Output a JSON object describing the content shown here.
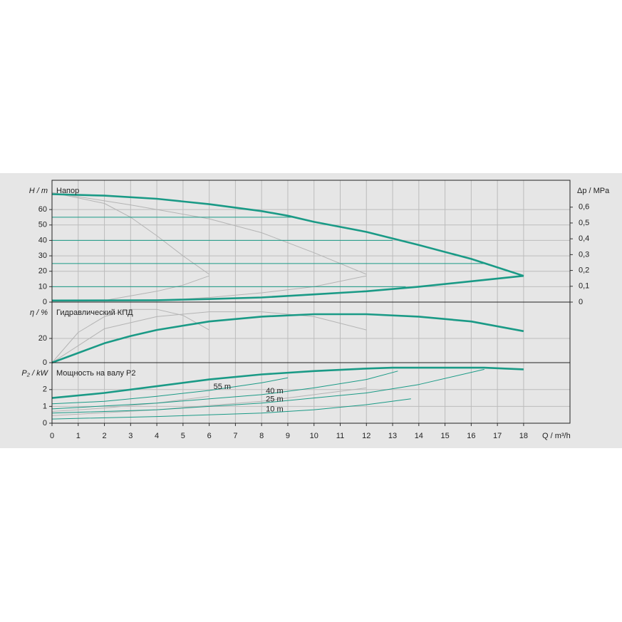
{
  "chart_data": [
    {
      "type": "line",
      "title": "Напор",
      "ylabel": "H / m",
      "y2label": "Δp / MPa",
      "xlim": [
        0,
        19.77
      ],
      "xticks": [
        0,
        1,
        2,
        3,
        4,
        5,
        6,
        7,
        8,
        9,
        10,
        11,
        12,
        13,
        14,
        15,
        16,
        17,
        18
      ],
      "ylim": [
        0,
        79
      ],
      "yticks": [
        0,
        10,
        20,
        30,
        40,
        50,
        60
      ],
      "y2lim": [
        0,
        0.77
      ],
      "y2ticks": [
        0,
        {
          "value": 0.1,
          "label": "0,1"
        },
        {
          "value": 0.2,
          "label": "0,2"
        },
        {
          "value": 0.3,
          "label": "0,3"
        },
        {
          "value": 0.4,
          "label": "0,4"
        },
        {
          "value": 0.5,
          "label": "0,5"
        },
        {
          "value": 0.6,
          "label": "0,6"
        }
      ],
      "grid": true,
      "series": [
        {
          "color": "#b4b4b4",
          "weight": "thin",
          "x": [
            0,
            2,
            3,
            4,
            5,
            6
          ],
          "values": [
            71,
            64,
            55,
            43,
            30,
            18
          ]
        },
        {
          "color": "#b4b4b4",
          "weight": "thin",
          "x": [
            2,
            3,
            4,
            5,
            6
          ],
          "values": [
            1,
            4,
            7,
            11,
            17
          ]
        },
        {
          "color": "#b4b4b4",
          "weight": "thin",
          "x": [
            0,
            3,
            6,
            8,
            10,
            12
          ],
          "values": [
            71,
            63,
            54,
            45,
            32,
            18
          ]
        },
        {
          "color": "#b4b4b4",
          "weight": "thin",
          "x": [
            4,
            6,
            8,
            10,
            12
          ],
          "values": [
            1,
            3,
            6,
            10,
            17
          ]
        },
        {
          "color": "#1a9a86",
          "weight": "thin",
          "x": [
            0,
            9.2
          ],
          "values": [
            55,
            55
          ]
        },
        {
          "color": "#1a9a86",
          "weight": "thin",
          "x": [
            0,
            13
          ],
          "values": [
            40,
            40
          ]
        },
        {
          "color": "#1a9a86",
          "weight": "thin",
          "x": [
            0,
            16.5
          ],
          "values": [
            25,
            25
          ]
        },
        {
          "color": "#1a9a86",
          "weight": "thin",
          "x": [
            0,
            13.5
          ],
          "values": [
            10,
            10
          ]
        },
        {
          "color": "#1a9a86",
          "weight": "bold",
          "x": [
            0,
            2,
            4,
            6,
            8,
            9,
            10,
            12,
            14,
            16,
            18
          ],
          "values": [
            70,
            69,
            67,
            63.5,
            59,
            56,
            52,
            45.5,
            37,
            28,
            17
          ]
        },
        {
          "color": "#1a9a86",
          "weight": "bold",
          "x": [
            0,
            4,
            6,
            8,
            10,
            12,
            14,
            16,
            18
          ],
          "values": [
            1,
            1.2,
            2,
            3,
            5,
            7,
            10,
            13.5,
            17
          ]
        }
      ]
    },
    {
      "type": "line",
      "title": "Гидравлический КПД",
      "ylabel": "η / %",
      "xlim": [
        0,
        19.77
      ],
      "xticks": [
        0,
        1,
        2,
        3,
        4,
        5,
        6,
        7,
        8,
        9,
        10,
        11,
        12,
        13,
        14,
        15,
        16,
        17,
        18
      ],
      "ylim": [
        0,
        50
      ],
      "yticks": [
        0,
        20
      ],
      "grid": true,
      "series": [
        {
          "color": "#b4b4b4",
          "weight": "thin",
          "x": [
            0,
            1,
            2,
            3,
            4,
            5,
            6
          ],
          "values": [
            0,
            25,
            38,
            44,
            44,
            39,
            27
          ]
        },
        {
          "color": "#b4b4b4",
          "weight": "thin",
          "x": [
            0,
            2,
            4,
            6,
            8,
            10,
            12
          ],
          "values": [
            0,
            28,
            38,
            42,
            42,
            38,
            27
          ]
        },
        {
          "color": "#1a9a86",
          "weight": "bold",
          "x": [
            0,
            1,
            2,
            3,
            4,
            6,
            8,
            10,
            12,
            14,
            16,
            18
          ],
          "values": [
            0,
            8,
            16,
            22,
            27,
            34,
            38,
            40,
            40,
            38,
            34,
            26
          ]
        }
      ]
    },
    {
      "type": "line",
      "title": "Мощность на валу P2",
      "ylabel": "P₂ / kW",
      "xlabel": "Q / m³/h",
      "xlim": [
        0,
        19.77
      ],
      "xticks": [
        0,
        1,
        2,
        3,
        4,
        5,
        6,
        7,
        8,
        9,
        10,
        11,
        12,
        13,
        14,
        15,
        16,
        17,
        18
      ],
      "ylim": [
        0,
        3.6
      ],
      "yticks": [
        0,
        1,
        2
      ],
      "grid": true,
      "series": [
        {
          "color": "#b4b4b4",
          "weight": "thin",
          "x": [
            0,
            2,
            4,
            6
          ],
          "values": [
            0.7,
            0.9,
            1.2,
            1.6
          ]
        },
        {
          "color": "#b4b4b4",
          "weight": "thin",
          "x": [
            0,
            4,
            8,
            12
          ],
          "values": [
            0.45,
            0.8,
            1.3,
            2.1
          ]
        },
        {
          "name": "55 m",
          "color": "#1a9a86",
          "weight": "thin",
          "x": [
            0,
            2,
            4,
            6,
            8,
            9
          ],
          "values": [
            1.15,
            1.3,
            1.6,
            1.95,
            2.4,
            2.7
          ]
        },
        {
          "name": "40 m",
          "color": "#1a9a86",
          "weight": "thin",
          "x": [
            0,
            4,
            8,
            10,
            12,
            13.2
          ],
          "values": [
            0.85,
            1.2,
            1.7,
            2.1,
            2.6,
            3.1
          ]
        },
        {
          "name": "25 m",
          "color": "#1a9a86",
          "weight": "thin",
          "x": [
            0,
            4,
            8,
            12,
            14,
            16.5
          ],
          "values": [
            0.6,
            0.8,
            1.2,
            1.8,
            2.3,
            3.2
          ]
        },
        {
          "name": "10 m",
          "color": "#1a9a86",
          "weight": "thin",
          "x": [
            0,
            4,
            8,
            10,
            12,
            13.7
          ],
          "values": [
            0.25,
            0.4,
            0.6,
            0.8,
            1.1,
            1.45
          ]
        },
        {
          "color": "#1a9a86",
          "weight": "bold",
          "x": [
            0,
            2,
            4,
            6,
            8,
            10,
            12,
            13,
            16.5,
            18
          ],
          "values": [
            1.5,
            1.8,
            2.2,
            2.6,
            2.9,
            3.1,
            3.25,
            3.3,
            3.3,
            3.2
          ]
        }
      ]
    }
  ]
}
